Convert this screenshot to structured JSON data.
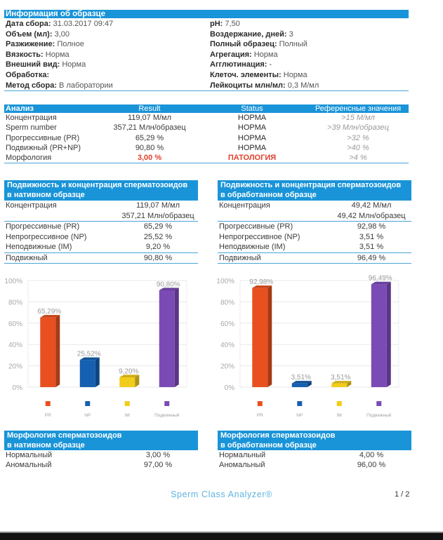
{
  "info": {
    "title": "Информация об образце",
    "left": [
      {
        "label": "Дата сбора:",
        "value": "31.03.2017 09:47"
      },
      {
        "label": "Объем (мл):",
        "value": "3,00"
      },
      {
        "label": "Разжижение:",
        "value": "Полное"
      },
      {
        "label": "Вязкость:",
        "value": "Норма"
      },
      {
        "label": "Внешний вид:",
        "value": "Норма"
      },
      {
        "label": "Обработка:",
        "value": ""
      },
      {
        "label": "Метод сбора:",
        "value": "В лаборатории"
      }
    ],
    "right": [
      {
        "label": "pH:",
        "value": "7,50"
      },
      {
        "label": "Воздержание, дней:",
        "value": "3"
      },
      {
        "label": "Полный образец:",
        "value": "Полный"
      },
      {
        "label": "Агрегация:",
        "value": "Норма"
      },
      {
        "label": "Агглютинация:",
        "value": "-"
      },
      {
        "label": "Клеточ. элементы:",
        "value": "Норма"
      },
      {
        "label": "Лейкоциты млн/мл:",
        "value": "0,3 М/мл"
      }
    ]
  },
  "analysis": {
    "headers": [
      "Анализ",
      "Result",
      "Status",
      "Референсные значения"
    ],
    "rows": [
      {
        "name": "Концентрация",
        "result": "119,07 М/мл",
        "status": "НОРМА",
        "ref": ">15 М/мл",
        "pathology": false
      },
      {
        "name": "Sperm number",
        "result": "357,21 Млн/образец",
        "status": "НОРМА",
        "ref": ">39 Млн/образец",
        "pathology": false
      },
      {
        "name": "Прогрессивные (PR)",
        "result": "65,29 %",
        "status": "НОРМА",
        "ref": ">32 %",
        "pathology": false
      },
      {
        "name": "Подвижный (PR+NP)",
        "result": "90,80 %",
        "status": "НОРМА",
        "ref": ">40 %",
        "pathology": false
      },
      {
        "name": "Морфология",
        "result": "3,00 %",
        "status": "ПАТОЛОГИЯ",
        "ref": ">4 %",
        "pathology": true
      }
    ],
    "pathology_color": "#e0412b"
  },
  "motility": [
    {
      "title_line1": "Подвижность и концентрация сперматозоидов",
      "title_line2": "в нативном образце",
      "conc_label": "Концентрация",
      "conc_value": "119,07 М/мл",
      "number_value": "357,21 Млн/образец",
      "rows": [
        {
          "label": "Прогрессивные (PR)",
          "value": "65,29 %"
        },
        {
          "label": "Непрогрессивное (NP)",
          "value": "25,52 %"
        },
        {
          "label": "Неподвижные (IM)",
          "value": "9,20 %"
        }
      ],
      "total_label": "Подвижный",
      "total_value": "90,80 %"
    },
    {
      "title_line1": "Подвижность и концентрация сперматозоидов",
      "title_line2": "в обработанном образце",
      "conc_label": "Концентрация",
      "conc_value": "49,42 М/мл",
      "number_value": "49,42 Млн/образец",
      "rows": [
        {
          "label": "Прогрессивные (PR)",
          "value": "92,98 %"
        },
        {
          "label": "Непрогрессивное (NP)",
          "value": "3,51 %"
        },
        {
          "label": "Неподвижные (IM)",
          "value": "3,51 %"
        }
      ],
      "total_label": "Подвижный",
      "total_value": "96,49 %"
    }
  ],
  "chart_data": [
    {
      "type": "bar",
      "title": "",
      "categories": [
        "PR",
        "NP",
        "IM",
        "Подвижный"
      ],
      "values": [
        65.29,
        25.52,
        9.2,
        90.8
      ],
      "labels": [
        "65,29%",
        "25,52%",
        "9,20%",
        "90,80%"
      ],
      "colors": [
        "#e8501f",
        "#1560b0",
        "#f2cc1a",
        "#7b4bb5"
      ],
      "yticks": [
        "0%",
        "20%",
        "40%",
        "60%",
        "80%",
        "100%"
      ],
      "ylim": [
        0,
        100
      ],
      "grid": true,
      "legend": "bottom"
    },
    {
      "type": "bar",
      "title": "",
      "categories": [
        "PR",
        "NP",
        "IM",
        "Подвижный"
      ],
      "values": [
        92.98,
        3.51,
        3.51,
        96.49
      ],
      "labels": [
        "92,98%",
        "3,51%",
        "3,51%",
        "96,49%"
      ],
      "colors": [
        "#e8501f",
        "#1560b0",
        "#f2cc1a",
        "#7b4bb5"
      ],
      "yticks": [
        "0%",
        "20%",
        "40%",
        "60%",
        "80%",
        "100%"
      ],
      "ylim": [
        0,
        100
      ],
      "grid": true,
      "legend": "bottom"
    }
  ],
  "morphology": [
    {
      "title_line1": "Морфология сперматозоидов",
      "title_line2": "в нативном образце",
      "rows": [
        {
          "label": "Нормальный",
          "value": "3,00 %"
        },
        {
          "label": "Аномальный",
          "value": "97,00 %"
        }
      ]
    },
    {
      "title_line1": "Морфология сперматозоидов",
      "title_line2": "в обработанном образце",
      "rows": [
        {
          "label": "Нормальный",
          "value": "4,00 %"
        },
        {
          "label": "Аномальный",
          "value": "96,00 %"
        }
      ]
    }
  ],
  "footer": {
    "brand": "Sperm Class Analyzer®",
    "page": "1 / 2"
  },
  "colors": {
    "header_blue": "#1a94d8",
    "rule_blue": "#4aa3d6"
  }
}
